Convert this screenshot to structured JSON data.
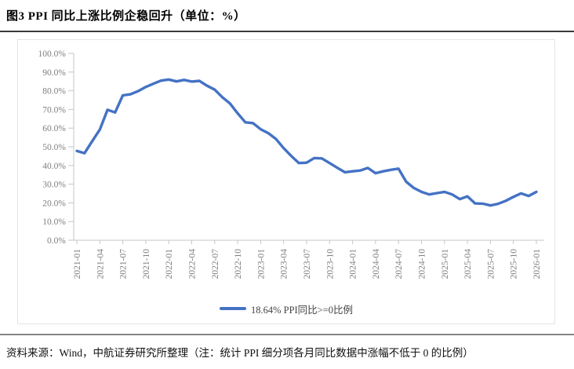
{
  "page": {
    "title": "图3  PPI 同比上涨比例企稳回升（单位：%）",
    "source_note": "资料来源：Wind，中航证券研究所整理（注：统计 PPI 细分项各月同比数据中涨幅不低于 0 的比例）"
  },
  "chart_data": {
    "type": "line",
    "title": "图3 PPI 同比上涨比例企稳回升（单位：%）",
    "legend": [
      "18.64% PPI同比>=0比例"
    ],
    "legend_position": "bottom-center",
    "line_color": "#4472C4",
    "axis_text_color": "#7f7f7f",
    "axis_line_color": "#c6c6c6",
    "grid": false,
    "ylim": [
      0,
      100
    ],
    "ytick_step": 10,
    "ytick_suffix": "%",
    "x_tick_every": 3,
    "x": [
      "2021-01",
      "2021-02",
      "2021-03",
      "2021-04",
      "2021-05",
      "2021-06",
      "2021-07",
      "2021-08",
      "2021-09",
      "2021-10",
      "2021-11",
      "2021-12",
      "2022-01",
      "2022-02",
      "2022-03",
      "2022-04",
      "2022-05",
      "2022-06",
      "2022-07",
      "2022-08",
      "2022-09",
      "2022-10",
      "2022-11",
      "2022-12",
      "2023-01",
      "2023-02",
      "2023-03",
      "2023-04",
      "2023-05",
      "2023-06",
      "2023-07",
      "2023-08",
      "2023-09",
      "2023-10",
      "2023-11",
      "2023-12",
      "2024-01",
      "2024-02",
      "2024-03",
      "2024-04",
      "2024-05",
      "2024-06",
      "2024-07",
      "2024-08",
      "2024-09",
      "2024-10",
      "2024-11",
      "2024-12",
      "2025-01",
      "2025-02",
      "2025-03",
      "2025-04",
      "2025-05",
      "2025-06",
      "2025-07",
      "2025-08",
      "2025-09",
      "2025-10",
      "2025-11",
      "2025-12",
      "2026-01"
    ],
    "series": [
      {
        "name": "18.64% PPI同比>=0比例",
        "values": [
          47.8,
          46.6,
          53.0,
          59.2,
          69.8,
          68.4,
          77.5,
          78.1,
          79.8,
          82.0,
          83.8,
          85.4,
          86.0,
          85.0,
          85.8,
          84.9,
          85.3,
          82.7,
          80.6,
          76.5,
          73.2,
          67.9,
          63.1,
          62.7,
          59.4,
          57.3,
          54.2,
          49.3,
          45.1,
          41.3,
          41.5,
          44.0,
          43.8,
          41.3,
          38.8,
          36.4,
          36.9,
          37.3,
          38.7,
          35.9,
          36.9,
          37.7,
          38.3,
          31.3,
          28.0,
          25.9,
          24.5,
          25.2,
          25.9,
          24.5,
          22.0,
          23.5,
          19.7,
          19.6,
          18.6,
          19.5,
          21.1,
          23.2,
          25.1,
          23.7,
          25.9
        ]
      }
    ]
  }
}
